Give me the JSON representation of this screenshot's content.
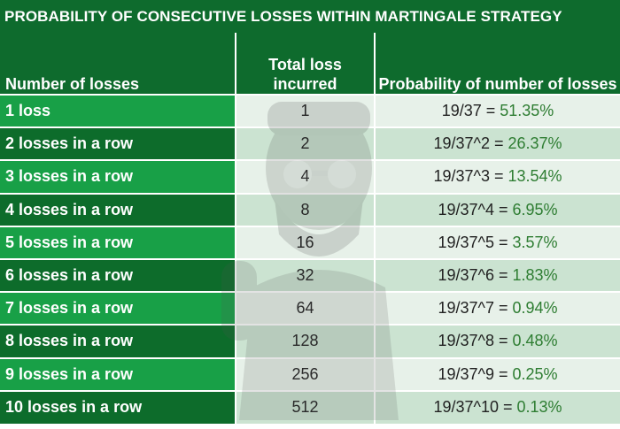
{
  "title": "PROBABILITY OF CONSECUTIVE LOSSES WITHIN MARTINGALE STRATEGY",
  "headers": {
    "col1": "Number of losses",
    "col2": "Total loss incurred",
    "col3": "Probability of number of losses"
  },
  "rows": [
    {
      "label": "1 loss",
      "total": "1",
      "expr": "19/37 = ",
      "pct": "51.35%"
    },
    {
      "label": "2 losses in a row",
      "total": "2",
      "expr": "19/37^2 = ",
      "pct": "26.37%"
    },
    {
      "label": "3 losses in a row",
      "total": "4",
      "expr": "19/37^3 = ",
      "pct": "13.54%"
    },
    {
      "label": "4 losses in a row",
      "total": "8",
      "expr": "19/37^4 = ",
      "pct": "6.95%"
    },
    {
      "label": "5 losses in a row",
      "total": "16",
      "expr": "19/37^5 = ",
      "pct": "3.57%"
    },
    {
      "label": "6 losses in a row",
      "total": "32",
      "expr": "19/37^6 = ",
      "pct": "1.83%"
    },
    {
      "label": "7 losses in a row",
      "total": "64",
      "expr": "19/37^7 = ",
      "pct": "0.94%"
    },
    {
      "label": "8 losses in a row",
      "total": "128",
      "expr": "19/37^8 = ",
      "pct": "0.48%"
    },
    {
      "label": "9 losses in a row",
      "total": "256",
      "expr": "19/37^9 = ",
      "pct": "0.25%"
    },
    {
      "label": "10 losses in a row",
      "total": "512",
      "expr": "19/37^10 = ",
      "pct": "0.13%"
    }
  ],
  "colors": {
    "dark_green": "#0e6b2d",
    "light_green": "#18a047",
    "pct_text": "#2e7d32",
    "cell_light": "#e7f1e9",
    "cell_mid": "#cbe3d1"
  },
  "icons": [
    "watermark-mascot-icon"
  ]
}
